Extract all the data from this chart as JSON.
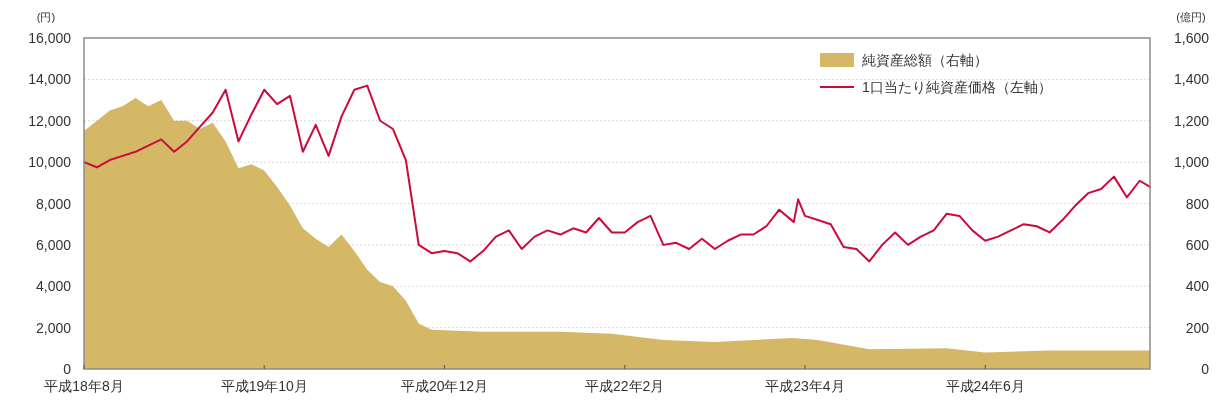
{
  "chart_data": {
    "type": "line",
    "ylabel": "(円)",
    "y2label": "(億円)",
    "xlim": [
      "2006-08",
      "2013-06-25"
    ],
    "xticks": [
      {
        "value": "2006-08",
        "label": "平成18年8月"
      },
      {
        "value": "2007-10",
        "label": "平成19年10月"
      },
      {
        "value": "2008-12",
        "label": "平成20年12月"
      },
      {
        "value": "2010-02",
        "label": "平成22年2月"
      },
      {
        "value": "2011-04",
        "label": "平成23年4月"
      },
      {
        "value": "2012-06",
        "label": "平成24年6月"
      }
    ],
    "ylim": [
      0,
      16000
    ],
    "yticks": [
      {
        "value": 0,
        "label": "0"
      },
      {
        "value": 2000,
        "label": "2,000"
      },
      {
        "value": 4000,
        "label": "4,000"
      },
      {
        "value": 6000,
        "label": "6,000"
      },
      {
        "value": 8000,
        "label": "8,000"
      },
      {
        "value": 10000,
        "label": "10,000"
      },
      {
        "value": 12000,
        "label": "12,000"
      },
      {
        "value": 14000,
        "label": "14,000"
      },
      {
        "value": 16000,
        "label": "16,000"
      }
    ],
    "y2lim": [
      0,
      1600
    ],
    "y2ticks": [
      {
        "value": 0,
        "label": "0"
      },
      {
        "value": 200,
        "label": "200"
      },
      {
        "value": 400,
        "label": "400"
      },
      {
        "value": 600,
        "label": "600"
      },
      {
        "value": 800,
        "label": "800"
      },
      {
        "value": 1000,
        "label": "1,000"
      },
      {
        "value": 1200,
        "label": "1,200"
      },
      {
        "value": 1400,
        "label": "1,400"
      },
      {
        "value": 1600,
        "label": "1,600"
      }
    ],
    "grid": "y",
    "legend": "top right",
    "series": [
      {
        "name": "純資産総額（右軸）",
        "type": "area",
        "axis": "y2",
        "color": "#d4b866",
        "x": [
          "2006-08",
          "2006-09",
          "2006-10",
          "2006-11",
          "2006-12",
          "2007-01",
          "2007-02",
          "2007-03",
          "2007-04",
          "2007-05",
          "2007-06",
          "2007-07",
          "2007-08",
          "2007-09",
          "2007-10",
          "2007-11",
          "2007-12",
          "2008-01",
          "2008-02",
          "2008-03",
          "2008-04",
          "2008-05",
          "2008-06",
          "2008-07",
          "2008-08",
          "2008-09",
          "2008-10",
          "2008-11",
          "2009-03",
          "2009-09",
          "2010-01",
          "2010-05",
          "2010-09",
          "2011-03",
          "2011-05",
          "2011-09",
          "2012-03",
          "2012-06",
          "2012-11",
          "2013-06-25"
        ],
        "values": [
          1150,
          1200,
          1250,
          1270,
          1310,
          1270,
          1300,
          1200,
          1200,
          1160,
          1190,
          1100,
          970,
          990,
          960,
          880,
          790,
          680,
          630,
          590,
          650,
          570,
          480,
          420,
          400,
          330,
          220,
          190,
          180,
          180,
          170,
          140,
          130,
          150,
          140,
          95,
          100,
          80,
          90,
          90
        ]
      },
      {
        "name": "1口当たり純資産価格（左軸）",
        "color": "#cc0a3c",
        "x": [
          "2006-08",
          "2006-09",
          "2006-10",
          "2006-11",
          "2006-12",
          "2007-01",
          "2007-02",
          "2007-03",
          "2007-04",
          "2007-05",
          "2007-06",
          "2007-07",
          "2007-08",
          "2007-09",
          "2007-10",
          "2007-11",
          "2007-12",
          "2008-01",
          "2008-02",
          "2008-03",
          "2008-04",
          "2008-05",
          "2008-06",
          "2008-07",
          "2008-08",
          "2008-09",
          "2008-10",
          "2008-11",
          "2008-12",
          "2009-01",
          "2009-02",
          "2009-03",
          "2009-04",
          "2009-05",
          "2009-06",
          "2009-07",
          "2009-08",
          "2009-09",
          "2009-10",
          "2009-11",
          "2009-12",
          "2010-01",
          "2010-02",
          "2010-03",
          "2010-04",
          "2010-05",
          "2010-06",
          "2010-07",
          "2010-08",
          "2010-09",
          "2010-10",
          "2010-11",
          "2010-12",
          "2011-01",
          "2011-02",
          "2011-03-05",
          "2011-03-15",
          "2011-04",
          "2011-05",
          "2011-06",
          "2011-07",
          "2011-08",
          "2011-09",
          "2011-10",
          "2011-11",
          "2011-12",
          "2012-01",
          "2012-02",
          "2012-03",
          "2012-04",
          "2012-05",
          "2012-06",
          "2012-07",
          "2012-08",
          "2012-09",
          "2012-10",
          "2012-11",
          "2012-12",
          "2013-01",
          "2013-02",
          "2013-03",
          "2013-04",
          "2013-05",
          "2013-06",
          "2013-06-25"
        ],
        "values": [
          10000,
          9750,
          10100,
          10300,
          10500,
          10800,
          11100,
          10500,
          11000,
          11700,
          12400,
          13500,
          11000,
          12300,
          13500,
          12800,
          13200,
          10500,
          11800,
          10300,
          12200,
          13500,
          13700,
          12000,
          11600,
          10100,
          6000,
          5600,
          5700,
          5600,
          5200,
          5700,
          6400,
          6700,
          5800,
          6400,
          6700,
          6500,
          6800,
          6600,
          7300,
          6600,
          6600,
          7100,
          7400,
          6000,
          6100,
          5800,
          6300,
          5800,
          6200,
          6500,
          6500,
          6900,
          7700,
          7100,
          8200,
          7400,
          7200,
          7000,
          5900,
          5800,
          5200,
          6000,
          6600,
          6000,
          6400,
          6700,
          7500,
          7400,
          6700,
          6200,
          6400,
          6700,
          7000,
          6900,
          6600,
          7200,
          7900,
          8500,
          8700,
          9300,
          8300,
          9100,
          8800
        ]
      }
    ]
  }
}
